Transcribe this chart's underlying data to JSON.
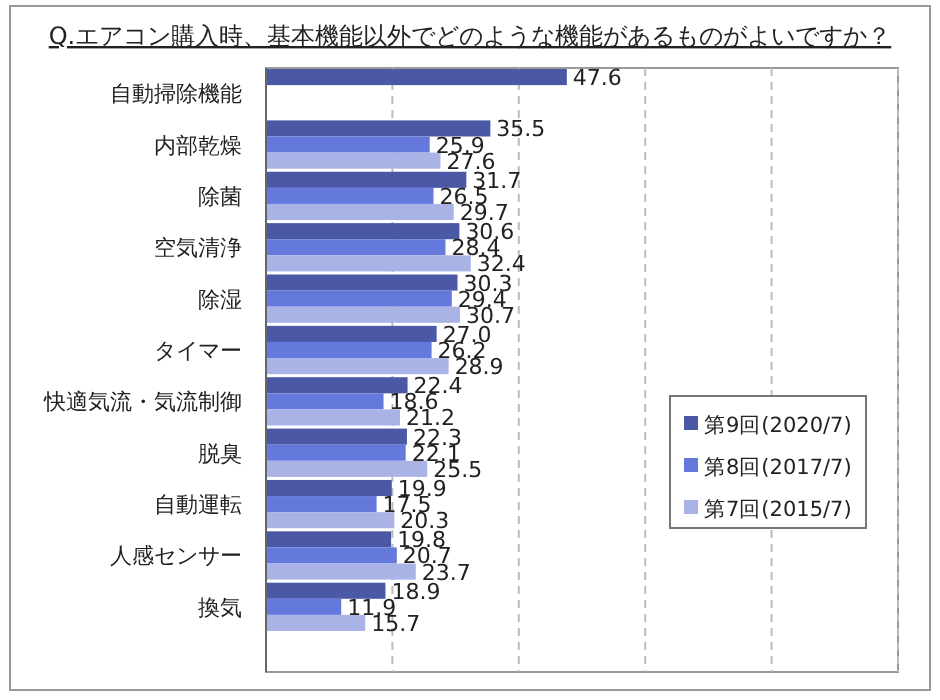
{
  "chart_data": {
    "type": "bar",
    "orientation": "horizontal",
    "title": "Q.エアコン購入時、基本機能以外でどのような機能があるものがよいですか？",
    "categories": [
      "自動掃除機能",
      "内部乾燥",
      "除菌",
      "空気清浄",
      "除湿",
      "タイマー",
      "快適気流・気流制御",
      "脱臭",
      "自動運転",
      "人感センサー",
      "換気"
    ],
    "series": [
      {
        "name": "第9回(2020/7)",
        "color": "#4a58a6",
        "values": [
          47.6,
          35.5,
          31.7,
          30.6,
          30.3,
          27.0,
          22.4,
          22.3,
          19.9,
          19.8,
          18.9
        ],
        "value_labels": [
          "47.6",
          "35.5",
          "31.7",
          "30.6",
          "30.3",
          "27.0",
          "22.4",
          "22.3",
          "19.9",
          "19.8",
          "18.9"
        ]
      },
      {
        "name": "第8回(2017/7)",
        "color": "#6579dc",
        "values": [
          null,
          25.9,
          26.5,
          28.4,
          29.4,
          26.2,
          18.6,
          22.1,
          17.5,
          20.7,
          11.9
        ],
        "value_labels": [
          null,
          "25.9",
          "26.5",
          "28.4",
          "29.4",
          "26.2",
          "18.6",
          "22.1",
          "17.5",
          "20.7",
          "11.9"
        ]
      },
      {
        "name": "第7回(2015/7)",
        "color": "#aab3e6",
        "values": [
          null,
          27.6,
          29.7,
          32.4,
          30.7,
          28.9,
          21.2,
          25.5,
          20.3,
          23.7,
          15.7
        ],
        "value_labels": [
          null,
          "27.6",
          "29.7",
          "32.4",
          "30.7",
          "28.9",
          "21.2",
          "25.5",
          "20.3",
          "23.7",
          "15.7"
        ]
      }
    ],
    "xlim": [
      0,
      100
    ],
    "xticks": [
      {
        "value": 0,
        "label": null
      },
      {
        "value": 20,
        "label": null
      },
      {
        "value": 40,
        "label": null
      },
      {
        "value": 60,
        "label": null
      },
      {
        "value": 80,
        "label": null
      },
      {
        "value": 100,
        "label": null
      }
    ],
    "tick_labels": "y",
    "grid": "x",
    "legend": "right"
  }
}
